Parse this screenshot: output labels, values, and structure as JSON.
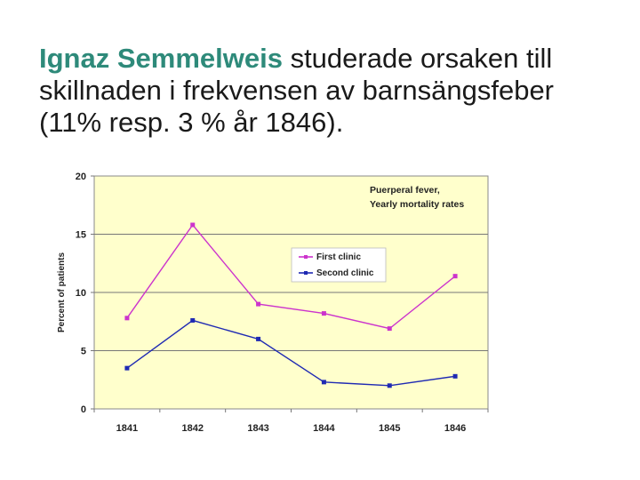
{
  "slide": {
    "title_highlight": "Ignaz Semmelweis",
    "title_line1_rest": " studerade orsaken till",
    "title_line2": "skillnaden i frekvensen av barnsängsfeber",
    "title_line3": "(11% resp. 3 % år 1846)."
  },
  "chart_data": {
    "type": "line",
    "title_lines": [
      "Puerperal fever,",
      "Yearly mortality rates"
    ],
    "xlabel": "",
    "ylabel": "Percent of patients",
    "categories": [
      "1841",
      "1842",
      "1843",
      "1844",
      "1845",
      "1846"
    ],
    "ylim": [
      0,
      20
    ],
    "yticks": [
      "0",
      "5",
      "10",
      "15",
      "20"
    ],
    "grid": true,
    "legend_position": "center-right",
    "plot_background": "#ffffcc",
    "series": [
      {
        "name": "First clinic",
        "color": "#cc33cc",
        "values": [
          7.8,
          15.8,
          9.0,
          8.2,
          6.9,
          11.4
        ]
      },
      {
        "name": "Second clinic",
        "color": "#1f2ab3",
        "values": [
          3.5,
          7.6,
          6.0,
          2.3,
          2.0,
          2.8
        ]
      }
    ]
  }
}
